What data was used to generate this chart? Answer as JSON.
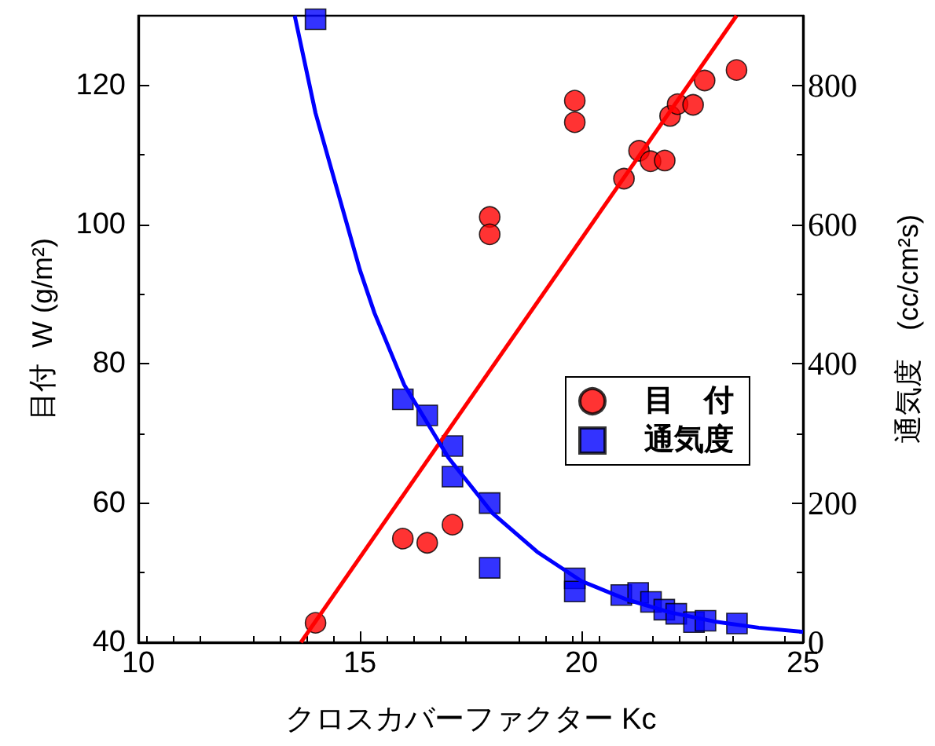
{
  "chart_data": {
    "type": "scatter",
    "xlabel": "クロスカバーファクター Kc",
    "ylabel": "目付  W (g/m²)",
    "y2label": "通気度　(cc/cm²s)",
    "xlim": [
      10,
      25
    ],
    "xticks": [
      10,
      15,
      20,
      25
    ],
    "ylim": [
      40,
      130
    ],
    "yticks": [
      40,
      60,
      80,
      100,
      120
    ],
    "y2lim": [
      0,
      900
    ],
    "y2ticks": [
      0,
      200,
      400,
      600,
      800
    ],
    "grid": false,
    "legend": "center right",
    "series": [
      {
        "name": "目　付",
        "marker": "circle",
        "color": "#ff0000",
        "x": [
          14.0,
          15.97,
          16.52,
          17.09,
          17.93,
          17.93,
          19.85,
          19.85,
          20.96,
          21.3,
          21.56,
          21.88,
          22.0,
          22.17,
          22.52,
          22.78,
          23.5
        ],
        "values": [
          42.8,
          54.9,
          54.3,
          56.9,
          101.1,
          98.6,
          117.8,
          114.7,
          106.6,
          110.6,
          109.1,
          109.2,
          115.6,
          117.3,
          117.2,
          120.7,
          122.2
        ]
      },
      {
        "name": "通気度",
        "marker": "square",
        "axis": "y2",
        "color": "#0000ff",
        "x": [
          14.0,
          15.97,
          16.52,
          17.09,
          17.09,
          17.93,
          17.93,
          19.85,
          19.85,
          20.9,
          21.28,
          21.57,
          21.87,
          22.14,
          22.54,
          22.8,
          23.51
        ],
        "values": [
          895,
          349,
          326,
          282,
          238,
          200,
          107,
          92,
          73,
          68,
          71,
          58,
          47,
          41,
          29,
          31,
          27
        ]
      },
      {
        "type": "line",
        "marker": "none",
        "color": "#ff0000",
        "x": [
          13.67,
          23.5
        ],
        "values": [
          40,
          130
        ]
      },
      {
        "type": "line",
        "marker": "none",
        "axis": "y2",
        "color": "#0000ff",
        "x": [
          13.53,
          14,
          15,
          15.33,
          16,
          17,
          18,
          19,
          20,
          21,
          22,
          23,
          24,
          25
        ],
        "values": [
          900,
          760,
          535,
          473,
          370,
          265,
          185,
          130,
          88,
          62,
          43,
          30,
          21,
          15
        ]
      }
    ]
  }
}
